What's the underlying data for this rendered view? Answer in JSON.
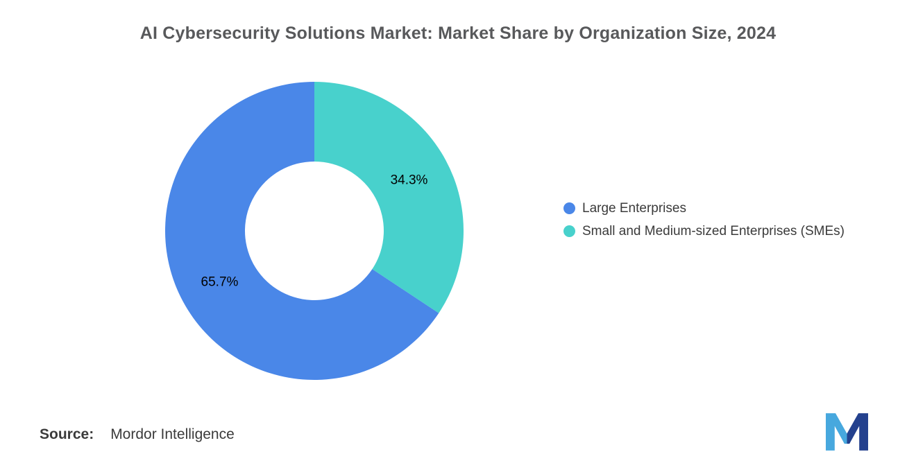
{
  "title": "AI Cybersecurity Solutions Market: Market Share by Organization Size, 2024",
  "source": {
    "label": "Source:",
    "value": "Mordor Intelligence"
  },
  "chart_data": {
    "type": "pie",
    "subtype": "donut",
    "title": "AI Cybersecurity Solutions Market: Market Share by Organization Size, 2024",
    "year": "2024",
    "legend_position": "right",
    "start_angle": "top",
    "direction": "counterclockwise",
    "label_color": "#000000",
    "slices": [
      {
        "label": "Large Enterprises",
        "value": 65.7,
        "display": "65.7%",
        "color": "#4A87E8"
      },
      {
        "label": "Small and Medium-sized Enterprises (SMEs)",
        "value": 34.3,
        "display": "34.3%",
        "color": "#48D1CC"
      }
    ]
  }
}
